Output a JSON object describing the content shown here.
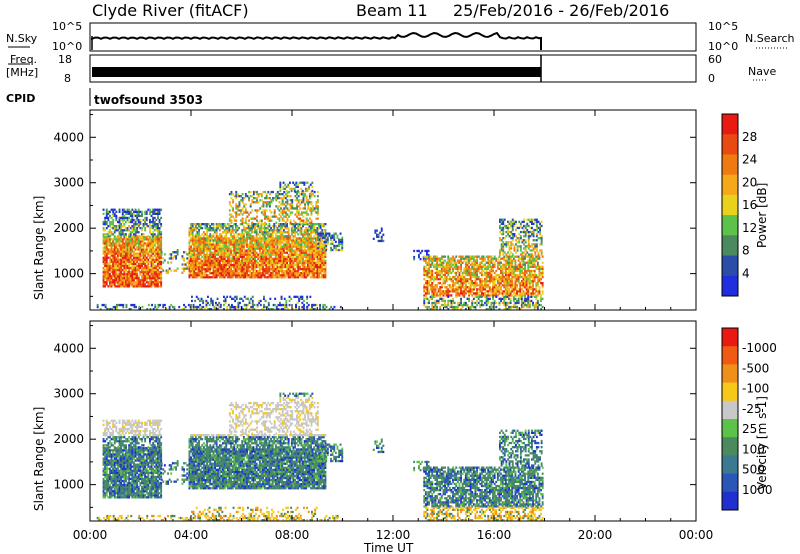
{
  "header": {
    "station": "Clyde River (fitACF)",
    "beam": "Beam 11",
    "dates": "25/Feb/2016 - 26/Feb/2016"
  },
  "top_panels": {
    "nsky_label": "N.Sky",
    "nsky_ticks": [
      "10^5",
      "10^0"
    ],
    "nsearch_label": "N.Search",
    "nsearch_ticks": [
      "10^5",
      "10^0"
    ],
    "freq_label_line1": "Freq.",
    "freq_label_line2": "[MHz]",
    "freq_ticks": [
      "18",
      "8"
    ],
    "nave_label": "Nave",
    "nave_ticks": [
      "60",
      "0"
    ],
    "cpid_label": "CPID",
    "cpid_value": "twofsound 3503"
  },
  "chart_data": [
    {
      "type": "heatmap",
      "name": "power",
      "ylabel": "Slant Range [km]",
      "yticks": [
        1000,
        2000,
        3000,
        4000
      ],
      "ylim": [
        200,
        4600
      ],
      "xticks": [
        "00:00",
        "04:00",
        "08:00",
        "12:00",
        "16:00",
        "20:00",
        "00:00"
      ],
      "xlim_hours": [
        0,
        24
      ],
      "colorbar_label": "Power [dB]",
      "colorbar_ticks": [
        "4",
        "8",
        "12",
        "16",
        "20",
        "24",
        "28"
      ],
      "colors": [
        "#1f2fe0",
        "#2a4ea8",
        "#4a8a5e",
        "#5cc24a",
        "#e8d21a",
        "#f5a81a",
        "#f07a12",
        "#e84a12",
        "#e81a12"
      ],
      "data_end_hours": 18
    },
    {
      "type": "heatmap",
      "name": "velocity",
      "ylabel": "Slant Range [km]",
      "yticks": [
        1000,
        2000,
        3000,
        4000
      ],
      "ylim": [
        200,
        4600
      ],
      "xticks": [
        "00:00",
        "04:00",
        "08:00",
        "12:00",
        "16:00",
        "20:00",
        "00:00"
      ],
      "xlim_hours": [
        0,
        24
      ],
      "xlabel": "Time UT",
      "colorbar_label": "Velocity [m s-1]",
      "colorbar_ticks": [
        "1000",
        "500",
        "100",
        "25",
        "-25",
        "-100",
        "-500",
        "-1000"
      ],
      "colors": [
        "#1f2fd0",
        "#2a56b8",
        "#3a7a90",
        "#4a8a5e",
        "#5cc24a",
        "#c8c8c8",
        "#f5c81a",
        "#f0901a",
        "#f05a12",
        "#e81a12"
      ],
      "data_end_hours": 18
    }
  ]
}
